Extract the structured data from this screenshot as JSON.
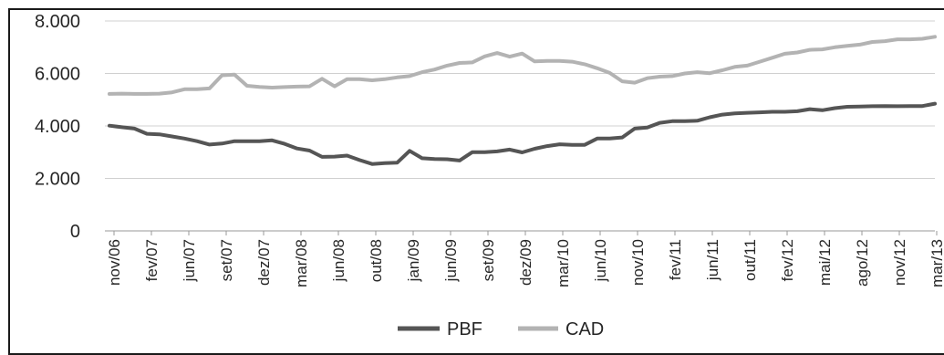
{
  "chart_data": {
    "type": "line",
    "title": "",
    "xlabel": "",
    "ylabel": "",
    "ylim": [
      0,
      8000
    ],
    "y_ticks": [
      0,
      2000,
      4000,
      6000,
      8000
    ],
    "y_tick_labels": [
      "0",
      "2.000",
      "4.000",
      "6.000",
      "8.000"
    ],
    "x_tick_labels": [
      "nov/06",
      "fev/07",
      "jun/07",
      "set/07",
      "dez/07",
      "mar/08",
      "jun/08",
      "out/08",
      "jan/09",
      "jun/09",
      "set/09",
      "dez/09",
      "mar/10",
      "jun/10",
      "nov/10",
      "fev/11",
      "jun/11",
      "out/11",
      "fev/12",
      "mai/12",
      "ago/12",
      "nov/12",
      "mar/13"
    ],
    "grid": {
      "horizontal": true,
      "vertical": false
    },
    "legend_position": "bottom",
    "series": [
      {
        "name": "PBF",
        "color": "#555555",
        "values": [
          4010,
          3950,
          3900,
          3700,
          3680,
          3600,
          3520,
          3420,
          3290,
          3330,
          3420,
          3420,
          3420,
          3450,
          3320,
          3140,
          3060,
          2820,
          2830,
          2870,
          2700,
          2550,
          2580,
          2600,
          3050,
          2770,
          2740,
          2730,
          2680,
          3000,
          3000,
          3030,
          3100,
          2990,
          3130,
          3230,
          3300,
          3280,
          3280,
          3520,
          3520,
          3560,
          3900,
          3940,
          4120,
          4180,
          4180,
          4200,
          4330,
          4430,
          4480,
          4500,
          4520,
          4540,
          4540,
          4560,
          4640,
          4600,
          4680,
          4730,
          4740,
          4750,
          4760,
          4750,
          4760,
          4760,
          4850
        ]
      },
      {
        "name": "CAD",
        "color": "#b3b3b3",
        "values": [
          5220,
          5230,
          5220,
          5220,
          5230,
          5280,
          5400,
          5400,
          5430,
          5930,
          5960,
          5530,
          5490,
          5460,
          5480,
          5500,
          5510,
          5800,
          5510,
          5780,
          5780,
          5740,
          5780,
          5850,
          5900,
          6050,
          6150,
          6300,
          6400,
          6420,
          6650,
          6780,
          6640,
          6760,
          6460,
          6480,
          6480,
          6450,
          6350,
          6200,
          6020,
          5700,
          5650,
          5820,
          5880,
          5900,
          6000,
          6050,
          6010,
          6120,
          6250,
          6300,
          6450,
          6600,
          6750,
          6800,
          6900,
          6920,
          7000,
          7050,
          7100,
          7200,
          7230,
          7300,
          7300,
          7320,
          7400
        ]
      }
    ]
  },
  "legend": {
    "items": [
      "PBF",
      "CAD"
    ]
  }
}
